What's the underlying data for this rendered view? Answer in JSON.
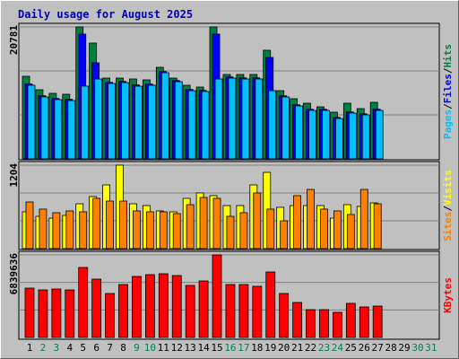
{
  "chart_data": [
    {
      "type": "bar",
      "title": "Daily usage for August 2025",
      "categories": [
        1,
        2,
        3,
        4,
        5,
        6,
        7,
        8,
        9,
        10,
        11,
        12,
        13,
        14,
        15,
        16,
        17,
        18,
        19,
        20,
        21,
        22,
        23,
        24,
        25,
        26,
        27,
        28,
        29,
        30,
        31
      ],
      "ylim": [
        0,
        20781
      ],
      "yticks": [
        20781
      ],
      "legend_separator": "/",
      "series": [
        {
          "name": "Hits",
          "color": "#008040",
          "values": [
            13006,
            10885,
            10320,
            10179,
            20781,
            18237,
            12723,
            12723,
            12582,
            12441,
            14420,
            12723,
            11592,
            11310,
            20781,
            13289,
            13289,
            13289,
            17106,
            10744,
            9472,
            8765,
            8199,
            7351,
            8765,
            7917,
            8906,
            null,
            null,
            null,
            null
          ]
        },
        {
          "name": "Files",
          "color": "#0000ff",
          "values": [
            11800,
            9950,
            9520,
            9380,
            19650,
            15127,
            12050,
            12200,
            11640,
            11780,
            13760,
            12340,
            10930,
            10790,
            19650,
            12900,
            12760,
            12760,
            15975,
            9940,
            8520,
            7810,
            7810,
            6540,
            7390,
            7100,
            7810,
            null,
            null,
            null,
            null
          ]
        },
        {
          "name": "Pages",
          "color": "#00c0ff",
          "values": [
            11592,
            9755,
            9330,
            9189,
            11451,
            12582,
            11875,
            12016,
            11451,
            11592,
            13572,
            12158,
            10744,
            10603,
            12582,
            12723,
            12582,
            12582,
            10744,
            9755,
            8341,
            7634,
            7634,
            6362,
            7210,
            6927,
            7634,
            null,
            null,
            null,
            null
          ]
        }
      ]
    },
    {
      "type": "bar",
      "categories": [
        1,
        2,
        3,
        4,
        5,
        6,
        7,
        8,
        9,
        10,
        11,
        12,
        13,
        14,
        15,
        16,
        17,
        18,
        19,
        20,
        21,
        22,
        23,
        24,
        25,
        26,
        27,
        28,
        29,
        30,
        31
      ],
      "ylim": [
        0,
        1204
      ],
      "yticks": [
        1204
      ],
      "legend_separator": "/",
      "series": [
        {
          "name": "Visits",
          "color": "#ffff00",
          "values": [
            531,
            466,
            440,
            479,
            647,
            751,
            919,
            1204,
            647,
            621,
            544,
            531,
            725,
            803,
            764,
            621,
            621,
            919,
            1100,
            596,
            621,
            621,
            621,
            440,
            634,
            608,
            660,
            null,
            null,
            null,
            null
          ]
        },
        {
          "name": "Sites",
          "color": "#ff8000",
          "values": [
            673,
            570,
            518,
            544,
            531,
            725,
            686,
            686,
            544,
            531,
            531,
            505,
            634,
            738,
            725,
            466,
            518,
            803,
            570,
            401,
            764,
            854,
            570,
            544,
            492,
            854,
            647,
            null,
            null,
            null,
            null
          ]
        }
      ]
    },
    {
      "type": "bar",
      "categories": [
        1,
        2,
        3,
        4,
        5,
        6,
        7,
        8,
        9,
        10,
        11,
        12,
        13,
        14,
        15,
        16,
        17,
        18,
        19,
        20,
        21,
        22,
        23,
        24,
        25,
        26,
        27,
        28,
        29,
        30,
        31
      ],
      "category_colors": [
        "#000000",
        "#00805c",
        "#00805c",
        "#000000",
        "#000000",
        "#000000",
        "#000000",
        "#000000",
        "#00805c",
        "#00805c",
        "#000000",
        "#000000",
        "#000000",
        "#000000",
        "#000000",
        "#00805c",
        "#00805c",
        "#000000",
        "#000000",
        "#000000",
        "#000000",
        "#000000",
        "#00805c",
        "#00805c",
        "#000000",
        "#000000",
        "#000000",
        "#000000",
        "#000000",
        "#00805c",
        "#00805c"
      ],
      "ylim": [
        0,
        6839636
      ],
      "yticks": [
        6839636
      ],
      "series": [
        {
          "name": "KBytes",
          "color": "#ff0000",
          "values": [
            4088920,
            3940232,
            4014576,
            3940232,
            5798832,
            4832360,
            3642856,
            4386296,
            5055392,
            5204080,
            5278424,
            5129736,
            4311952,
            4683672,
            6839636,
            4386296,
            4386296,
            4237608,
            5427112,
            3642856,
            2899416,
            2304664,
            2304664,
            2081632,
            2825072,
            2527696,
            2602040,
            null,
            null,
            null,
            null
          ]
        }
      ]
    }
  ]
}
